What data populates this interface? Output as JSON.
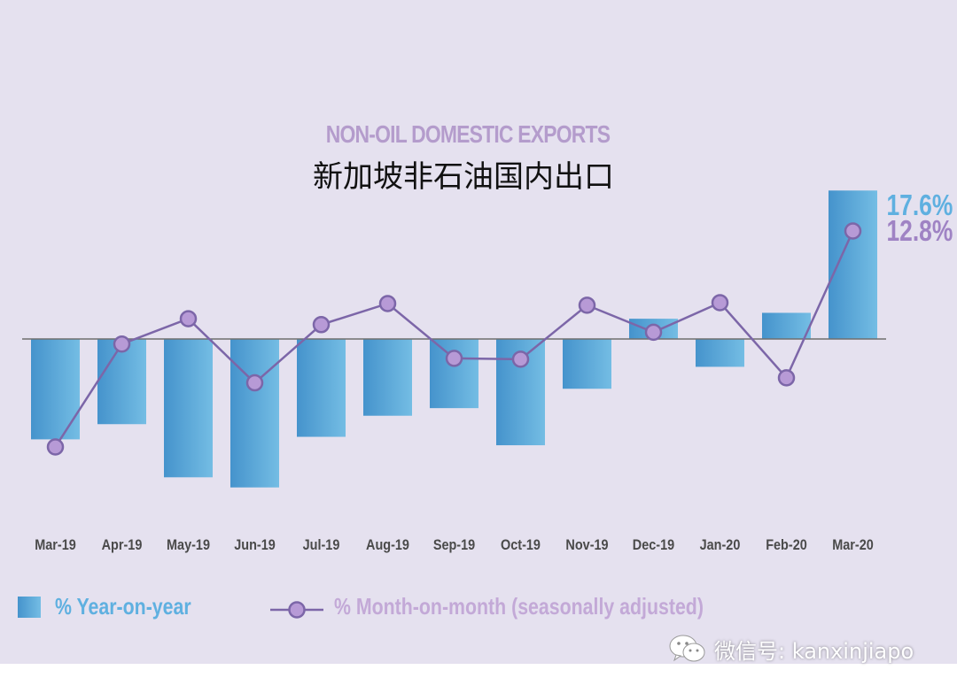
{
  "chart_data": {
    "type": "bar",
    "title": "NON-OIL DOMESTIC EXPORTS",
    "subtitle": "新加坡非石油国内出口",
    "categories": [
      "Mar-19",
      "Apr-19",
      "May-19",
      "Jun-19",
      "Jul-19",
      "Aug-19",
      "Sep-19",
      "Oct-19",
      "Nov-19",
      "Dec-19",
      "Jan-20",
      "Feb-20",
      "Mar-20"
    ],
    "series": [
      {
        "name": "% Year-on-year",
        "kind": "bar",
        "color": "#4a97cf",
        "values": [
          -11.9,
          -10.1,
          -16.4,
          -17.6,
          -11.6,
          -9.1,
          -8.2,
          -12.6,
          -5.9,
          2.4,
          -3.3,
          3.1,
          17.6
        ]
      },
      {
        "name": "% Month-on-month (seasonally adjusted)",
        "kind": "line",
        "color": "#7c66a8",
        "marker_color": "#b79ad6",
        "values": [
          -12.8,
          -0.6,
          2.4,
          -5.2,
          1.7,
          4.2,
          -2.3,
          -2.4,
          4.0,
          0.8,
          4.3,
          -4.6,
          12.8
        ]
      }
    ],
    "value_labels": [
      {
        "series": "% Year-on-year",
        "text": "17.6%",
        "color": "#5fb0e0"
      },
      {
        "series": "% Month-on-month (seasonally adjusted)",
        "text": "12.8%",
        "color": "#9f83c4"
      }
    ],
    "ylim": [
      -20,
      20
    ],
    "legend_position": "bottom-left",
    "grid": false,
    "zero_line_color": "#6f6f6f"
  },
  "legend": {
    "yoy_label": "% Year-on-year",
    "mom_label": "% Month-on-month (seasonally adjusted)"
  },
  "watermark": {
    "icon": "wechat-icon",
    "text": "微信号: kanxinjiapo"
  },
  "colors": {
    "background": "#e5e1ef",
    "title_en": "#b49ccc",
    "bar_dark": "#4593cc",
    "bar_light": "#74bde4",
    "line": "#7c66a8",
    "marker": "#b79ad6"
  }
}
